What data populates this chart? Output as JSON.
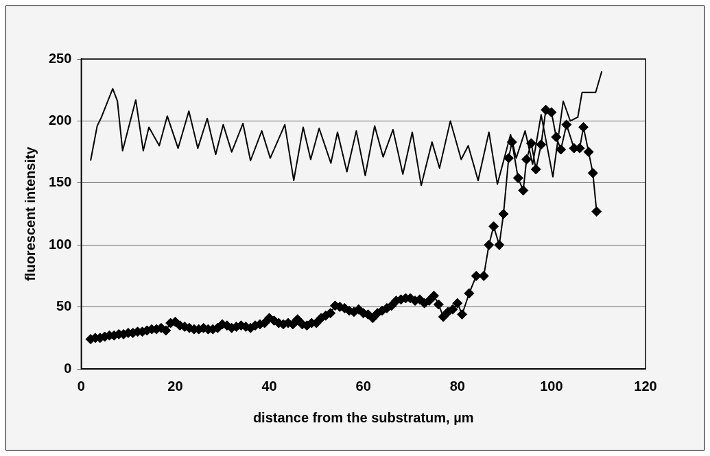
{
  "chart_data": {
    "type": "line",
    "xlabel": "distance from the substratum, µm",
    "ylabel": "fluorescent intensity",
    "xlim": [
      0,
      120
    ],
    "xticks": [
      0,
      20,
      40,
      60,
      80,
      100,
      120
    ],
    "ylim": [
      0,
      250
    ],
    "yticks": [
      0,
      50,
      100,
      150,
      200,
      250
    ],
    "grid": "y",
    "legend": false,
    "line_style": "solid",
    "series": [
      {
        "color": "#000000",
        "marker": "none",
        "x": [
          2,
          3.4,
          4.3,
          6.7,
          7.7,
          8.8,
          11.6,
          13.2,
          14.4,
          16.6,
          18.3,
          20.6,
          22.9,
          24.8,
          26.8,
          28.6,
          30.2,
          32,
          34.4,
          36,
          38.4,
          40.2,
          43.3,
          45.2,
          47.2,
          48.8,
          50.6,
          53.1,
          54.5,
          56.5,
          58.5,
          60.4,
          62.4,
          64.2,
          66.3,
          68.4,
          70.4,
          72.3,
          74.6,
          76.2,
          78.5,
          80.8,
          82.3,
          84.4,
          86.7,
          88.5,
          91.3,
          92.5,
          94.4,
          96,
          97.8,
          100.3,
          102.5,
          104,
          105.6,
          106.5,
          109.4,
          110.7
        ],
        "values": [
          168,
          196,
          203,
          226,
          216,
          176,
          217,
          176,
          195,
          180,
          204,
          178,
          208,
          178,
          202,
          173,
          197,
          175,
          198,
          168,
          192,
          170,
          197,
          152,
          195,
          169,
          194,
          166,
          191,
          159,
          192,
          156,
          196,
          171,
          193,
          157,
          191,
          148,
          183,
          162,
          200,
          169,
          180,
          152,
          191,
          149,
          189,
          170,
          192,
          165,
          205,
          155,
          216,
          200,
          203,
          223,
          223,
          240
        ]
      },
      {
        "color": "#000000",
        "marker": "diamond",
        "x": [
          2,
          3,
          4,
          5,
          6,
          7,
          8,
          9,
          10,
          11,
          12,
          13,
          14,
          15,
          16,
          17,
          18,
          19,
          20,
          21,
          22,
          23,
          24,
          25,
          26,
          27,
          28,
          29,
          30,
          31,
          32,
          33,
          34,
          35,
          36,
          37,
          38,
          39,
          40,
          41,
          42,
          43,
          44,
          45,
          46,
          47,
          48,
          49,
          50,
          51,
          52,
          53,
          54,
          55,
          56,
          57,
          58,
          59,
          60,
          61,
          62,
          63,
          64,
          65,
          66,
          67,
          68,
          69,
          70,
          71,
          72,
          73,
          74,
          75,
          76,
          77,
          78,
          79,
          80,
          81,
          82.5,
          84,
          85.6,
          86.7,
          87.7,
          88.9,
          89.8,
          90.9,
          91.6,
          92.9,
          94,
          94.7,
          95.7,
          96.7,
          97.8,
          98.8,
          100,
          101,
          102,
          103.2,
          104.8,
          106,
          106.8,
          107.9,
          108.8,
          109.6
        ],
        "values": [
          24,
          25,
          25,
          26,
          27,
          27,
          28,
          28,
          29,
          29,
          30,
          30,
          31,
          32,
          32,
          33,
          31,
          37,
          38,
          35,
          34,
          33,
          32,
          32,
          33,
          32,
          32,
          33,
          36,
          35,
          33,
          34,
          35,
          34,
          33,
          35,
          36,
          37,
          41,
          39,
          37,
          36,
          37,
          36,
          40,
          36,
          35,
          37,
          37,
          41,
          43,
          45,
          51,
          50,
          49,
          47,
          46,
          48,
          45,
          44,
          41,
          45,
          47,
          49,
          51,
          55,
          56,
          57,
          57,
          55,
          56,
          53,
          55,
          59,
          52,
          42,
          46,
          48,
          53,
          44,
          61,
          75,
          75,
          100,
          115,
          100,
          125,
          170,
          183,
          154,
          144,
          169,
          182,
          161,
          181,
          209,
          207,
          187,
          177,
          197,
          178,
          178,
          195,
          175,
          158,
          127
        ]
      }
    ]
  }
}
